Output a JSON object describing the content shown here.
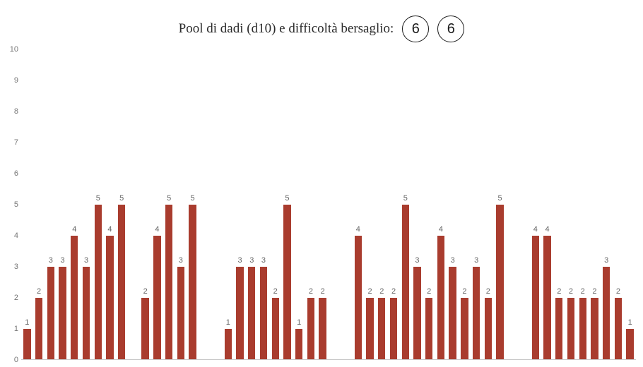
{
  "header": {
    "title": "Pool di dadi (d10) e difficoltà bersaglio:",
    "pool_value": "6",
    "difficulty_value": "6"
  },
  "chart": {
    "type": "bar",
    "y_axis": {
      "min": 0,
      "max": 10,
      "ticks": [
        0,
        1,
        2,
        3,
        4,
        5,
        6,
        7,
        8,
        9,
        10
      ],
      "label_fontsize": 11,
      "label_color": "#777777"
    },
    "bar_color": "#a93c2e",
    "bar_width_ratio": 0.62,
    "background_color": "#ffffff",
    "baseline_color": "#c8c8c8",
    "label_fontsize": 11,
    "label_color": "#666666",
    "values": [
      1,
      2,
      3,
      3,
      4,
      3,
      5,
      4,
      5,
      0,
      2,
      4,
      5,
      3,
      5,
      0,
      0,
      1,
      3,
      3,
      3,
      2,
      5,
      1,
      2,
      2,
      0,
      0,
      4,
      2,
      2,
      2,
      5,
      3,
      2,
      4,
      3,
      2,
      3,
      2,
      5,
      0,
      0,
      4,
      4,
      2,
      2,
      2,
      2,
      3,
      2,
      1
    ]
  }
}
